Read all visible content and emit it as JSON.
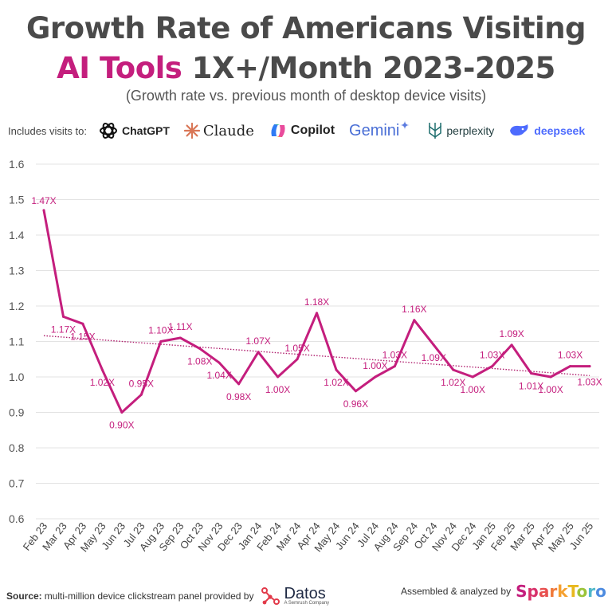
{
  "title_line1": "Growth Rate of Americans Visiting",
  "title_line2_accent": "AI Tools",
  "title_line2_rest": " 1X+/Month 2023-2025",
  "subtitle": "(Growth rate vs. previous month of desktop device visits)",
  "includes_label": "Includes visits to:",
  "brands": [
    {
      "name": "ChatGPT",
      "icon": "openai-icon"
    },
    {
      "name": "Claude",
      "icon": "claude-icon"
    },
    {
      "name": "Copilot",
      "icon": "copilot-icon"
    },
    {
      "name": "Gemini",
      "icon": "gemini-icon"
    },
    {
      "name": "perplexity",
      "icon": "perplexity-icon"
    },
    {
      "name": "deepseek",
      "icon": "deepseek-icon"
    }
  ],
  "footer": {
    "source_label": "Source:",
    "source_text": "multi-million device clickstream panel provided by",
    "datos_name": "Datos",
    "datos_sub": "A Semrush Company",
    "assembled_text": "Assembled & analyzed by",
    "sparktoro": "SparkToro"
  },
  "colors": {
    "line": "#c41e7d",
    "accent": "#c41e7d",
    "grid": "#e3e3e3",
    "trend": "#b01f6e"
  },
  "chart_data": {
    "type": "line",
    "categories": [
      "Feb 23",
      "Mar 23",
      "Apr 23",
      "May 23",
      "Jun 23",
      "Jul 23",
      "Aug 23",
      "Sep 23",
      "Oct 23",
      "Nov 23",
      "Dec 23",
      "Jan 24",
      "Feb 24",
      "Mar 24",
      "Apr 24",
      "May 24",
      "Jun 24",
      "Jul 24",
      "Aug 24",
      "Sep 24",
      "Oct 24",
      "Nov 24",
      "Dec 24",
      "Jan 25",
      "Feb 25",
      "Mar 25",
      "Apr 25",
      "May 25",
      "Jun 25"
    ],
    "values": [
      1.47,
      1.17,
      1.15,
      1.02,
      0.9,
      0.95,
      1.1,
      1.11,
      1.08,
      1.04,
      0.98,
      1.07,
      1.0,
      1.05,
      1.18,
      1.02,
      0.96,
      1.0,
      1.03,
      1.16,
      1.09,
      1.02,
      1.0,
      1.03,
      1.09,
      1.01,
      1.0,
      1.03,
      1.03
    ],
    "labels": [
      "1.47X",
      "1.17X",
      "1.15X",
      "1.02X",
      "0.90X",
      "0.95X",
      "1.10X",
      "1.11X",
      "1.08X",
      "1.04X",
      "0.98X",
      "1.07X",
      "1.00X",
      "1.05X",
      "1.18X",
      "1.02X",
      "0.96X",
      "1.00X",
      "1.03X",
      "1.16X",
      "1.09X",
      "1.02X",
      "1.00X",
      "1.03X",
      "1.09X",
      "1.01X",
      "1.00X",
      "1.03X",
      "1.03X"
    ],
    "ylim": [
      0.6,
      1.6
    ],
    "yticks": [
      "0.6",
      "0.7",
      "0.8",
      "0.9",
      "1.0",
      "1.1",
      "1.2",
      "1.3",
      "1.4",
      "1.5",
      "1.6"
    ],
    "trendline": true,
    "grid": true
  }
}
